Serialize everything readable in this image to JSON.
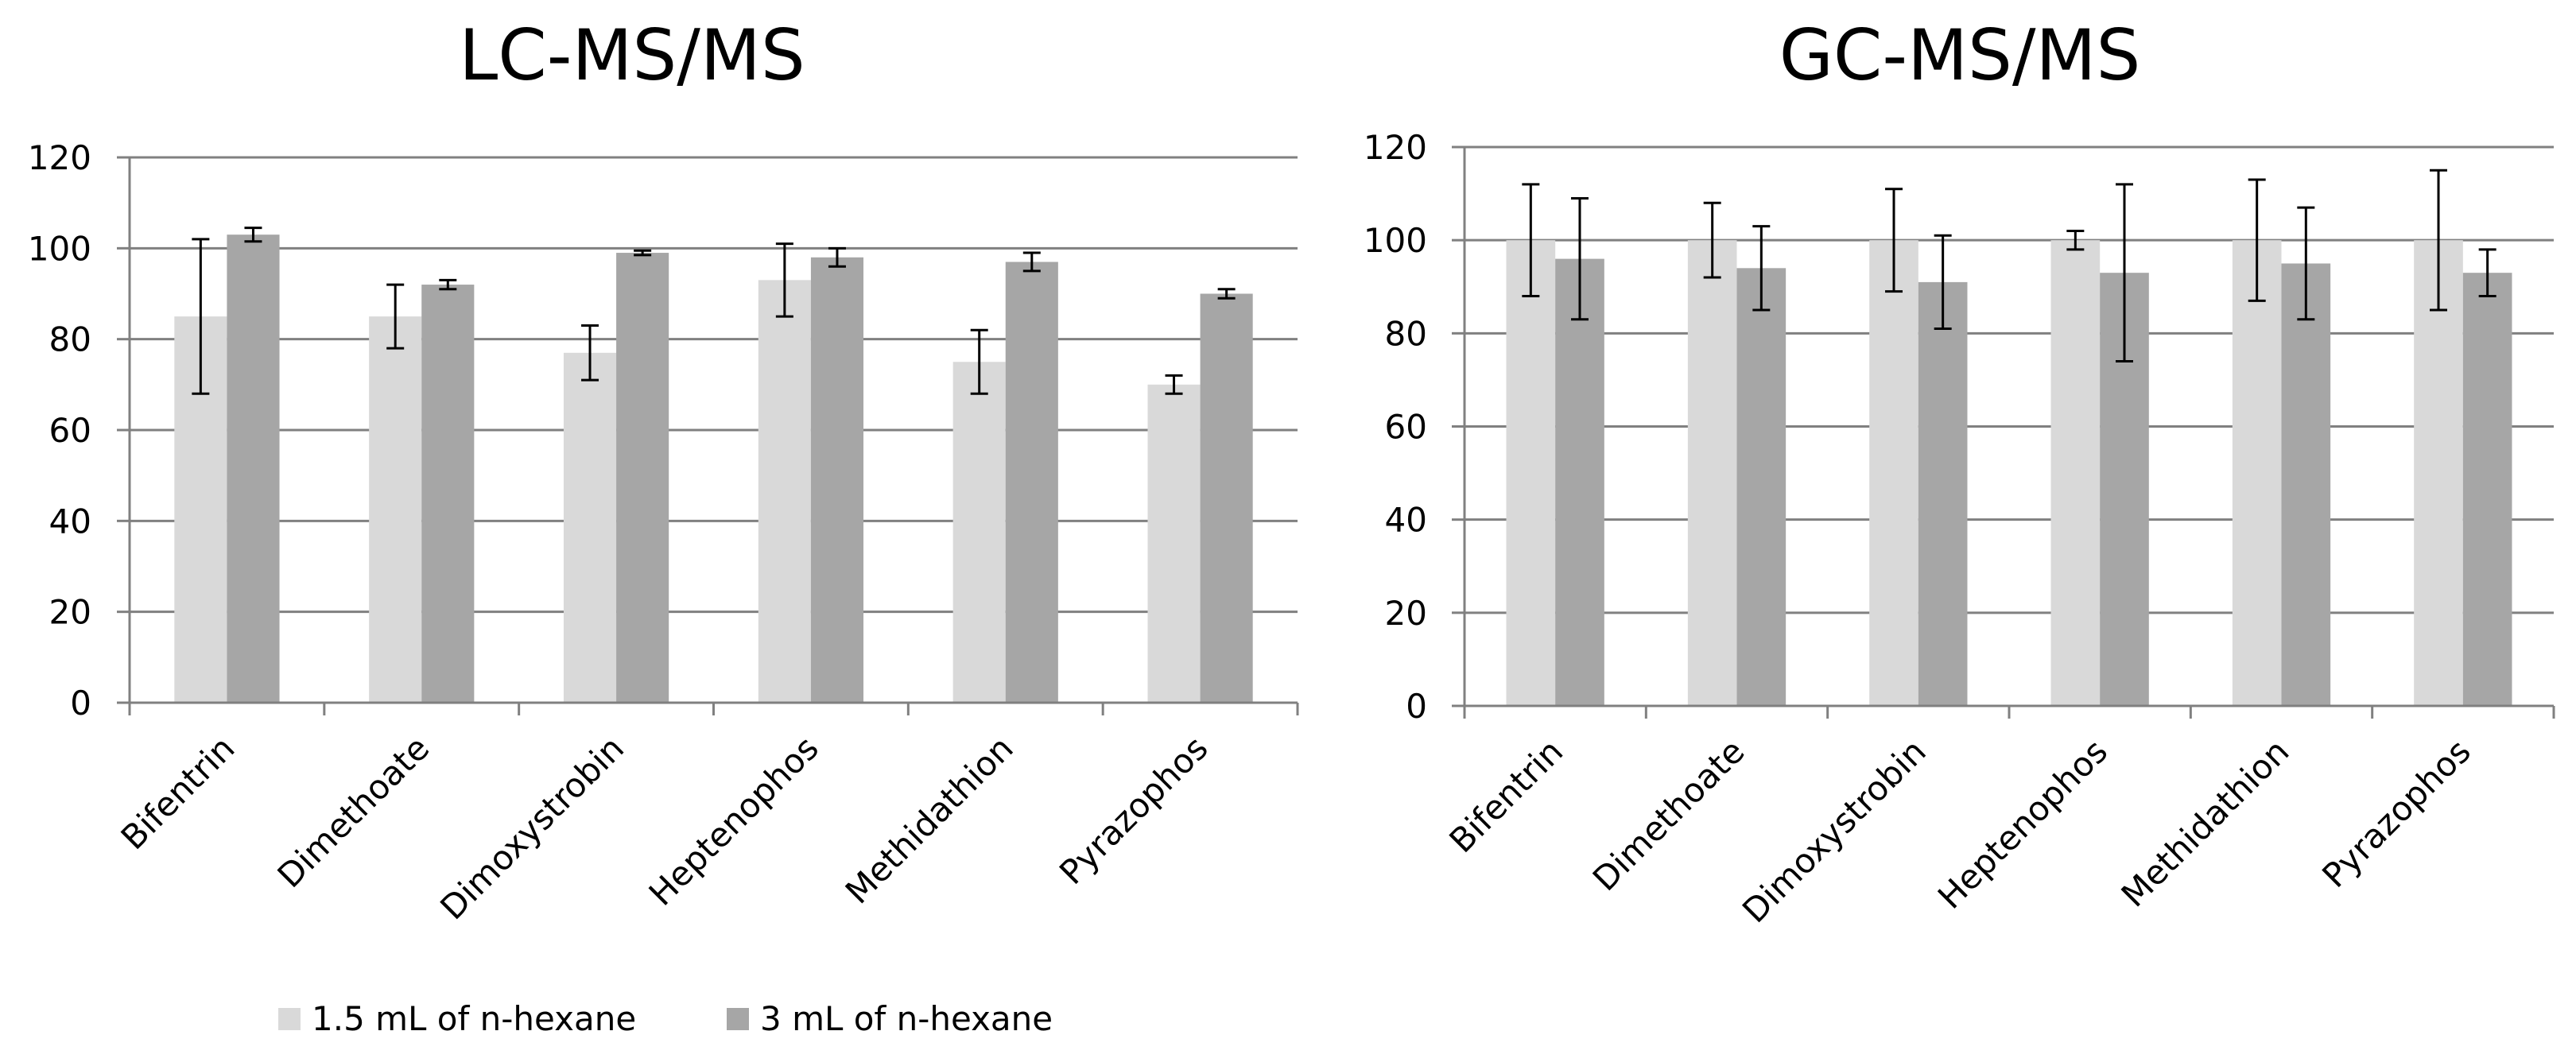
{
  "colors": {
    "series1": "#d9d9d9",
    "series2": "#a6a6a6",
    "grid": "#808080",
    "axis": "#808080",
    "error": "#000000"
  },
  "legend": {
    "items": [
      "1.5 mL of n-hexane",
      "3 mL of n-hexane"
    ]
  },
  "chart_data": [
    {
      "type": "bar",
      "title": "LC-MS/MS",
      "categories": [
        "Bifentrin",
        "Dimethoate",
        "Dimoxystrobin",
        "Heptenophos",
        "Methidathion",
        "Pyrazophos"
      ],
      "series": [
        {
          "name": "1.5 mL of n-hexane",
          "values": [
            85,
            85,
            77,
            93,
            75,
            70
          ],
          "errors": [
            17,
            7,
            6,
            8,
            7,
            2
          ]
        },
        {
          "name": "3 mL of n-hexane",
          "values": [
            103,
            92,
            99,
            98,
            97,
            90
          ],
          "errors": [
            1.5,
            1,
            0.5,
            2,
            2,
            1
          ]
        }
      ],
      "ylim": [
        0,
        120
      ],
      "yticks": [
        0,
        20,
        40,
        60,
        80,
        100,
        120
      ],
      "xlabel": "",
      "ylabel": "",
      "legend_position": "bottom-left"
    },
    {
      "type": "bar",
      "title": "GC-MS/MS",
      "categories": [
        "Bifentrin",
        "Dimethoate",
        "Dimoxystrobin",
        "Heptenophos",
        "Methidathion",
        "Pyrazophos"
      ],
      "series": [
        {
          "name": "1.5 mL of n-hexane",
          "values": [
            100,
            100,
            100,
            100,
            100,
            100
          ],
          "errors": [
            12,
            8,
            11,
            2,
            13,
            15
          ]
        },
        {
          "name": "3 mL of n-hexane",
          "values": [
            96,
            94,
            91,
            93,
            95,
            93
          ],
          "errors": [
            13,
            9,
            10,
            19,
            12,
            5
          ]
        }
      ],
      "ylim": [
        0,
        120
      ],
      "yticks": [
        0,
        20,
        40,
        60,
        80,
        100,
        120
      ],
      "xlabel": "",
      "ylabel": ""
    }
  ]
}
